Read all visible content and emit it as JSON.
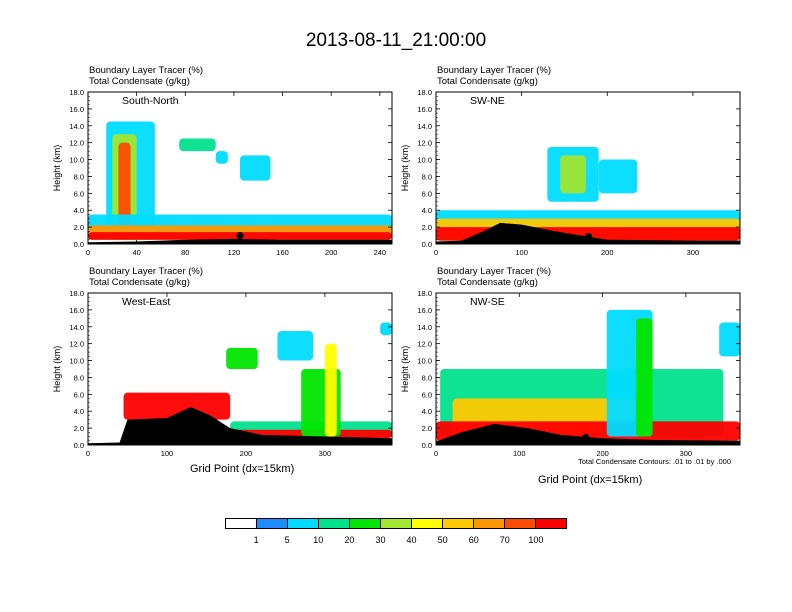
{
  "title": "2013-08-11_21:00:00",
  "header_line1": "Boundary Layer Tracer   (%)",
  "header_line2": "Total Condensate   (g/kg)",
  "ylabel": "Height (km)",
  "xlabel": "Grid Point (dx=15km)",
  "contour_note": "Total Condensate Contours: .01 to .01 by .000",
  "contour_label": "0.01",
  "colorbar": {
    "colors": [
      "#ffffff",
      "#1e8cff",
      "#00dcff",
      "#00e28c",
      "#00e600",
      "#a0e632",
      "#ffff00",
      "#ffc800",
      "#ff9600",
      "#ff4b00",
      "#ff0000"
    ],
    "labels": [
      "1",
      "5",
      "10",
      "20",
      "30",
      "40",
      "50",
      "60",
      "70",
      "100"
    ]
  },
  "chart_data": [
    {
      "type": "heatmap",
      "panel_title": "South-North",
      "xlim": [
        0,
        250
      ],
      "ylim": [
        0,
        18
      ],
      "xticks": [
        0,
        40,
        80,
        120,
        160,
        200,
        240
      ],
      "yticks": [
        "0.0",
        "2.0",
        "4.0",
        "6.0",
        "8.0",
        "10.0",
        "12.0",
        "14.0",
        "16.0",
        "18.0"
      ],
      "terrain": [
        [
          0,
          0.2
        ],
        [
          40,
          0.3
        ],
        [
          80,
          0.5
        ],
        [
          120,
          0.6
        ],
        [
          160,
          0.5
        ],
        [
          200,
          0.5
        ],
        [
          250,
          0.5
        ]
      ],
      "marker": [
        125,
        1.0
      ],
      "plumes": [
        {
          "x": [
            15,
            55
          ],
          "y": [
            0.5,
            14.5
          ],
          "level": 2
        },
        {
          "x": [
            20,
            40
          ],
          "y": [
            0.5,
            13.0
          ],
          "level": 5
        },
        {
          "x": [
            25,
            35
          ],
          "y": [
            0.5,
            12.0
          ],
          "level": 9
        },
        {
          "x": [
            0,
            250
          ],
          "y": [
            0.5,
            3.5
          ],
          "level": 2
        },
        {
          "x": [
            0,
            250
          ],
          "y": [
            0.5,
            2.2
          ],
          "level": 8
        },
        {
          "x": [
            0,
            250
          ],
          "y": [
            0.5,
            1.4
          ],
          "level": 10
        },
        {
          "x": [
            75,
            105
          ],
          "y": [
            11.0,
            12.5
          ],
          "level": 3
        },
        {
          "x": [
            105,
            115
          ],
          "y": [
            9.5,
            11.0
          ],
          "level": 2
        },
        {
          "x": [
            125,
            150
          ],
          "y": [
            7.5,
            10.5
          ],
          "level": 2
        }
      ]
    },
    {
      "type": "heatmap",
      "panel_title": "SW-NE",
      "xlim": [
        0,
        355
      ],
      "ylim": [
        0,
        18
      ],
      "xticks": [
        0,
        100,
        200,
        300
      ],
      "yticks": [
        "0.0",
        "2.0",
        "4.0",
        "6.0",
        "8.0",
        "10.0",
        "12.0",
        "14.0",
        "16.0",
        "18.0"
      ],
      "terrain": [
        [
          0,
          0.3
        ],
        [
          30,
          0.4
        ],
        [
          55,
          1.5
        ],
        [
          75,
          2.5
        ],
        [
          100,
          2.3
        ],
        [
          140,
          1.5
        ],
        [
          200,
          0.5
        ],
        [
          300,
          0.4
        ],
        [
          355,
          0.4
        ]
      ],
      "marker": [
        178,
        0.9
      ],
      "plumes": [
        {
          "x": [
            0,
            355
          ],
          "y": [
            0.4,
            4.0
          ],
          "level": 2
        },
        {
          "x": [
            0,
            355
          ],
          "y": [
            0.4,
            3.0
          ],
          "level": 7
        },
        {
          "x": [
            0,
            355
          ],
          "y": [
            0.4,
            2.0
          ],
          "level": 10
        },
        {
          "x": [
            130,
            190
          ],
          "y": [
            5.0,
            11.5
          ],
          "level": 2
        },
        {
          "x": [
            145,
            175
          ],
          "y": [
            6.0,
            10.5
          ],
          "level": 5
        },
        {
          "x": [
            190,
            235
          ],
          "y": [
            6.0,
            10.0
          ],
          "level": 2
        }
      ]
    },
    {
      "type": "heatmap",
      "panel_title": "West-East",
      "xlim": [
        0,
        385
      ],
      "ylim": [
        0,
        18
      ],
      "xticks": [
        0,
        100,
        200,
        300
      ],
      "yticks": [
        "0.0",
        "2.0",
        "4.0",
        "6.0",
        "8.0",
        "10.0",
        "12.0",
        "14.0",
        "16.0",
        "18.0"
      ],
      "terrain": [
        [
          0,
          0.2
        ],
        [
          40,
          0.3
        ],
        [
          50,
          3.0
        ],
        [
          100,
          3.2
        ],
        [
          130,
          4.5
        ],
        [
          155,
          3.5
        ],
        [
          180,
          2.0
        ],
        [
          220,
          1.2
        ],
        [
          300,
          1.0
        ],
        [
          385,
          0.8
        ]
      ],
      "marker": [
        193,
        1.0
      ],
      "plumes": [
        {
          "x": [
            45,
            180
          ],
          "y": [
            3.0,
            6.2
          ],
          "level": 10
        },
        {
          "x": [
            180,
            385
          ],
          "y": [
            0.8,
            2.8
          ],
          "level": 3
        },
        {
          "x": [
            180,
            385
          ],
          "y": [
            0.8,
            1.8
          ],
          "level": 10
        },
        {
          "x": [
            270,
            320
          ],
          "y": [
            1.0,
            9.0
          ],
          "level": 4
        },
        {
          "x": [
            300,
            315
          ],
          "y": [
            1.0,
            12.0
          ],
          "level": 6
        },
        {
          "x": [
            175,
            215
          ],
          "y": [
            9.0,
            11.5
          ],
          "level": 4
        },
        {
          "x": [
            240,
            285
          ],
          "y": [
            10.0,
            13.5
          ],
          "level": 2
        },
        {
          "x": [
            370,
            385
          ],
          "y": [
            13.0,
            14.5
          ],
          "level": 2
        }
      ]
    },
    {
      "type": "heatmap",
      "panel_title": "NW-SE",
      "xlim": [
        0,
        365
      ],
      "ylim": [
        0,
        18
      ],
      "xticks": [
        0,
        100,
        200,
        300
      ],
      "yticks": [
        "0.0",
        "2.0",
        "4.0",
        "6.0",
        "8.0",
        "10.0",
        "12.0",
        "14.0",
        "16.0",
        "18.0"
      ],
      "terrain": [
        [
          0,
          0.4
        ],
        [
          30,
          1.5
        ],
        [
          70,
          2.5
        ],
        [
          110,
          2.0
        ],
        [
          150,
          1.2
        ],
        [
          200,
          0.8
        ],
        [
          260,
          0.6
        ],
        [
          365,
          0.5
        ]
      ],
      "marker": [
        180,
        0.9
      ],
      "plumes": [
        {
          "x": [
            5,
            345
          ],
          "y": [
            1.0,
            9.0
          ],
          "level": 3
        },
        {
          "x": [
            20,
            250
          ],
          "y": [
            1.0,
            5.5
          ],
          "level": 7
        },
        {
          "x": [
            0,
            365
          ],
          "y": [
            0.5,
            2.8
          ],
          "level": 10
        },
        {
          "x": [
            205,
            260
          ],
          "y": [
            1.0,
            16.0
          ],
          "level": 2
        },
        {
          "x": [
            240,
            260
          ],
          "y": [
            1.0,
            15.0
          ],
          "level": 4
        },
        {
          "x": [
            340,
            365
          ],
          "y": [
            10.5,
            14.5
          ],
          "level": 2
        }
      ]
    }
  ]
}
